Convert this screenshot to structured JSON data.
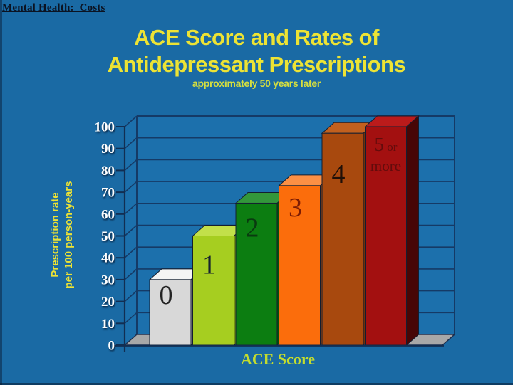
{
  "slide": {
    "header": "Mental Health:  Costs",
    "title_line1": "ACE Score and Rates of",
    "title_line2": "Antidepressant Prescriptions",
    "subtitle": "approximately 50 years later",
    "background_color": "#1A6AA4",
    "title_color": "#EDE334"
  },
  "chart_data": {
    "type": "bar",
    "title": "ACE Score and Rates of Antidepressant Prescriptions",
    "subtitle": "approximately 50 years later",
    "xlabel": "ACE Score",
    "ylabel": "Prescription rate per 100 person-years",
    "ylabel_lines": [
      "Prescription rate",
      "per 100 person-years"
    ],
    "categories": [
      "0",
      "1",
      "2",
      "3",
      "4",
      "5 or more"
    ],
    "values": [
      30,
      50,
      65,
      73,
      97,
      100
    ],
    "ylim": [
      0,
      100
    ],
    "yticks": [
      0,
      10,
      20,
      30,
      40,
      50,
      60,
      70,
      80,
      90,
      100
    ],
    "grid": true,
    "legend": false,
    "projection": "3d-bar",
    "bars": [
      {
        "category": "0",
        "value": 30,
        "front": "#D8D8D8",
        "top": "#F4F4F4",
        "side": "#9FA0A2",
        "label_color": "#222222"
      },
      {
        "category": "1",
        "value": 50,
        "front": "#A6CE20",
        "top": "#C2E04A",
        "side": "#749412",
        "label_color": "#16222E"
      },
      {
        "category": "2",
        "value": 65,
        "front": "#0C7D11",
        "top": "#33973B",
        "side": "#075109",
        "label_color": "#0A3A10"
      },
      {
        "category": "3",
        "value": 73,
        "front": "#FB6D0C",
        "top": "#FC9045",
        "side": "#AF4A07",
        "label_color": "#7D1C04"
      },
      {
        "category": "4",
        "value": 97,
        "front": "#A8490E",
        "top": "#C2601E",
        "side": "#733008",
        "label_color": "#201008"
      },
      {
        "category": "5 or more",
        "value": 100,
        "front": "#A31010",
        "top": "#BB1B1B",
        "side": "#470606",
        "label_color": "#620C0C",
        "label_lines": [
          "5 or",
          "more"
        ]
      }
    ],
    "colors": {
      "background": "#1A6AA4",
      "wall": "#1C70AC",
      "grid": "#153A66",
      "axis": "#122E52",
      "floor": "#A8A8A8",
      "tick_label": "#FFFFFF"
    }
  }
}
